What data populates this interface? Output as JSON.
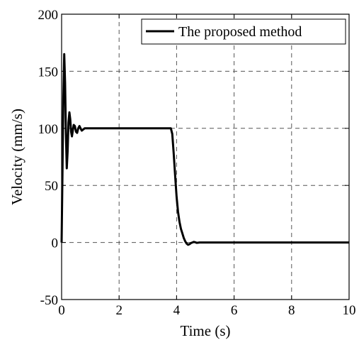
{
  "chart_data": {
    "type": "line",
    "title": "",
    "xlabel": "Time (s)",
    "ylabel": "Velocity (mm/s)",
    "xlim": [
      0,
      10
    ],
    "ylim": [
      -50,
      200
    ],
    "xticks": [
      0,
      2,
      4,
      6,
      8,
      10
    ],
    "yticks": [
      -50,
      0,
      50,
      100,
      150,
      200
    ],
    "xtick_labels": [
      "0",
      "2",
      "4",
      "6",
      "8",
      "10"
    ],
    "ytick_labels": [
      "-50",
      "0",
      "50",
      "100",
      "150",
      "200"
    ],
    "grid": true,
    "legend_position": "top-right",
    "series": [
      {
        "name": "The proposed method",
        "color": "#000000",
        "x": [
          0,
          0.03,
          0.06,
          0.09,
          0.12,
          0.15,
          0.18,
          0.21,
          0.24,
          0.27,
          0.3,
          0.33,
          0.36,
          0.39,
          0.42,
          0.46,
          0.5,
          0.54,
          0.58,
          0.62,
          0.66,
          0.7,
          0.75,
          0.8,
          0.9,
          1.0,
          2.0,
          3.0,
          3.8,
          3.85,
          3.9,
          3.95,
          4.0,
          4.05,
          4.1,
          4.15,
          4.2,
          4.25,
          4.3,
          4.35,
          4.4,
          4.45,
          4.5,
          4.55,
          4.6,
          4.65,
          4.7,
          4.75,
          4.8,
          4.9,
          5.0,
          6.0,
          7.0,
          8.0,
          9.0,
          10.0
        ],
        "y": [
          0,
          60,
          125,
          165,
          140,
          95,
          65,
          80,
          105,
          114,
          108,
          97,
          93,
          98,
          103,
          102,
          97,
          96,
          100,
          102,
          100,
          98,
          99,
          100,
          100,
          100,
          100,
          100,
          100,
          95,
          78,
          58,
          40,
          27,
          18,
          12,
          8,
          4,
          1,
          -1,
          -2,
          -1.5,
          -0.5,
          0,
          0.5,
          0.2,
          -0.3,
          -0.2,
          0,
          0,
          0,
          0,
          0,
          0,
          0,
          0
        ]
      }
    ]
  }
}
